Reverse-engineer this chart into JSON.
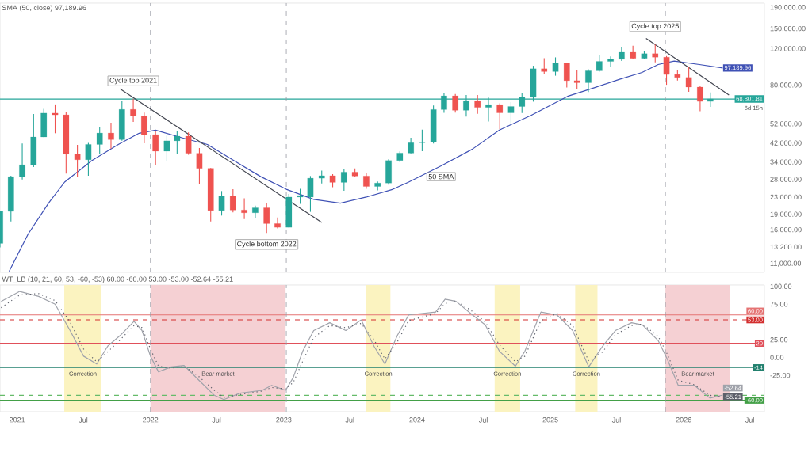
{
  "chart_data": [
    {
      "type": "candlestick",
      "subtitle": "SMA (50, close) 97,189.96",
      "log": true,
      "tick_labels": "y",
      "xlim": [
        "2020-11-15",
        "2026-08-10"
      ],
      "ylim": [
        10000,
        200000
      ],
      "yticks": [
        {
          "value": 11000,
          "label": "11,000.00"
        },
        {
          "value": 13200,
          "label": "13,200.00"
        },
        {
          "value": 16000,
          "label": "16,000.00"
        },
        {
          "value": 19000,
          "label": "19,000.00"
        },
        {
          "value": 23000,
          "label": "23,000.00"
        },
        {
          "value": 28000,
          "label": "28,000.00"
        },
        {
          "value": 34000,
          "label": "34,000.00"
        },
        {
          "value": 42000,
          "label": "42,000.00"
        },
        {
          "value": 52000,
          "label": "52,000.00"
        },
        {
          "value": 80000,
          "label": "80,000.00"
        },
        {
          "value": 120000,
          "label": "120,000.00"
        },
        {
          "value": 150000,
          "label": "150,000.00"
        },
        {
          "value": 190000,
          "label": "190,000.00"
        }
      ],
      "x": [
        "2020-11-15",
        "2020-12-15",
        "2021-01-15",
        "2021-02-15",
        "2021-03-15",
        "2021-04-15",
        "2021-05-15",
        "2021-06-15",
        "2021-07-15",
        "2021-08-15",
        "2021-09-15",
        "2021-10-15",
        "2021-11-15",
        "2021-12-15",
        "2022-01-15",
        "2022-02-15",
        "2022-03-15",
        "2022-04-15",
        "2022-05-15",
        "2022-06-15",
        "2022-07-15",
        "2022-08-15",
        "2022-09-15",
        "2022-10-15",
        "2022-11-15",
        "2022-12-15",
        "2023-01-15",
        "2023-02-15",
        "2023-03-15",
        "2023-04-15",
        "2023-05-15",
        "2023-06-15",
        "2023-07-15",
        "2023-08-15",
        "2023-09-15",
        "2023-10-15",
        "2023-11-15",
        "2023-12-15",
        "2024-01-15",
        "2024-02-15",
        "2024-03-15",
        "2024-04-15",
        "2024-05-15",
        "2024-06-15",
        "2024-07-15",
        "2024-08-15",
        "2024-09-15",
        "2024-10-15",
        "2024-11-15",
        "2024-12-15",
        "2025-01-15",
        "2025-02-15",
        "2025-03-15",
        "2025-04-15",
        "2025-05-15",
        "2025-06-15",
        "2025-07-15",
        "2025-08-15",
        "2025-09-15",
        "2025-10-15",
        "2025-11-15",
        "2025-12-15",
        "2026-01-15",
        "2026-02-15",
        "2026-03-15"
      ],
      "ohlc": [
        [
          13800,
          19800,
          13200,
          19700
        ],
        [
          19700,
          29300,
          17600,
          29000
        ],
        [
          29000,
          41900,
          28100,
          33100
        ],
        [
          33100,
          58300,
          32300,
          45100
        ],
        [
          45100,
          61700,
          45000,
          58800
        ],
        [
          58800,
          64800,
          47000,
          57700
        ],
        [
          57700,
          59500,
          30000,
          37300
        ],
        [
          37300,
          41300,
          28800,
          35000
        ],
        [
          35000,
          42200,
          29300,
          41500
        ],
        [
          41500,
          50500,
          37300,
          47100
        ],
        [
          47100,
          52900,
          39600,
          43800
        ],
        [
          43800,
          67000,
          43300,
          61300
        ],
        [
          61300,
          69000,
          53300,
          57000
        ],
        [
          57000,
          59100,
          42000,
          46300
        ],
        [
          46300,
          48000,
          32900,
          38500
        ],
        [
          38500,
          45800,
          34300,
          43200
        ],
        [
          43200,
          48200,
          37200,
          45500
        ],
        [
          45500,
          47400,
          37000,
          37600
        ],
        [
          37600,
          39900,
          26700,
          31800
        ],
        [
          31800,
          31900,
          17600,
          19900
        ],
        [
          19900,
          24700,
          18800,
          23300
        ],
        [
          23300,
          25200,
          19500,
          20000
        ],
        [
          20000,
          22800,
          18100,
          19400
        ],
        [
          19400,
          21000,
          18200,
          20500
        ],
        [
          20500,
          21500,
          15500,
          17200
        ],
        [
          17200,
          18400,
          16300,
          16500
        ],
        [
          16500,
          23900,
          16500,
          23100
        ],
        [
          23100,
          25300,
          21400,
          23500
        ],
        [
          23100,
          29200,
          19600,
          28500
        ],
        [
          28500,
          31000,
          26900,
          29300
        ],
        [
          29300,
          29800,
          25800,
          27200
        ],
        [
          27200,
          31400,
          24800,
          30500
        ],
        [
          30500,
          31800,
          28900,
          29200
        ],
        [
          29200,
          30200,
          25300,
          26000
        ],
        [
          26000,
          27500,
          24900,
          27000
        ],
        [
          27000,
          35200,
          26500,
          34700
        ],
        [
          34700,
          38400,
          34100,
          37700
        ],
        [
          37700,
          44700,
          37600,
          42300
        ],
        [
          42300,
          48900,
          38500,
          42600
        ],
        [
          42600,
          64000,
          41900,
          61200
        ],
        [
          61200,
          73800,
          59000,
          71300
        ],
        [
          71300,
          72800,
          59200,
          60700
        ],
        [
          60700,
          71900,
          56600,
          67500
        ],
        [
          67500,
          72000,
          58400,
          62700
        ],
        [
          62700,
          70000,
          53500,
          64600
        ],
        [
          64600,
          65600,
          49100,
          59000
        ],
        [
          59000,
          66500,
          52600,
          63300
        ],
        [
          63300,
          73600,
          58900,
          70200
        ],
        [
          70200,
          99600,
          66800,
          96400
        ],
        [
          96400,
          108300,
          90500,
          93400
        ],
        [
          93400,
          109400,
          89200,
          102400
        ],
        [
          102400,
          102500,
          78200,
          84400
        ],
        [
          84400,
          95000,
          76600,
          82500
        ],
        [
          82500,
          95800,
          74400,
          94200
        ],
        [
          94200,
          111900,
          93400,
          104600
        ],
        [
          104600,
          110600,
          98200,
          107100
        ],
        [
          107100,
          123200,
          105100,
          115800
        ],
        [
          115800,
          124500,
          107300,
          108200
        ],
        [
          108200,
          117900,
          107300,
          114000
        ],
        [
          114000,
          126200,
          103500,
          109600
        ],
        [
          109600,
          111000,
          80600,
          90400
        ],
        [
          90400,
          94600,
          84500,
          87500
        ],
        [
          87500,
          97900,
          74500,
          78600
        ],
        [
          78600,
          79300,
          60000,
          67000
        ],
        [
          67000,
          74000,
          63000,
          68801.81
        ]
      ],
      "series": [
        {
          "type": "line",
          "color": "#3f51b5",
          "x": [
            "2020-12-10",
            "2021-01-31",
            "2021-03-28",
            "2021-05-11",
            "2021-07-24",
            "2021-10-05",
            "2021-12-01",
            "2022-01-15",
            "2022-03-28",
            "2022-06-06",
            "2022-08-18",
            "2022-10-30",
            "2023-01-08",
            "2023-03-24",
            "2023-06-05",
            "2023-08-15",
            "2023-10-27",
            "2023-12-09",
            "2024-03-07",
            "2024-06-01",
            "2024-08-14",
            "2024-11-10",
            "2025-02-17",
            "2025-05-01",
            "2025-07-08",
            "2025-09-09",
            "2025-10-23",
            "2025-12-06",
            "2026-02-13",
            "2026-04-18"
          ],
          "values": [
            10100,
            15300,
            21600,
            27300,
            34600,
            41500,
            47000,
            48700,
            44700,
            41500,
            34600,
            29000,
            25200,
            22500,
            21600,
            23100,
            25200,
            27300,
            32700,
            39400,
            48700,
            57500,
            70900,
            78000,
            85500,
            92500,
            101000,
            104900,
            101000,
            97189.96
          ],
          "value_labels": [
            null,
            null,
            null,
            null,
            null,
            null,
            null,
            null,
            null,
            null,
            null,
            null,
            null,
            null,
            null,
            null,
            null,
            null,
            null,
            null,
            null,
            null,
            null,
            null,
            null,
            null,
            null,
            null,
            null,
            "97,189.96"
          ]
        },
        {
          "type": "line",
          "color": "#434651",
          "x": [
            "2021-10-10",
            "2023-04-15"
          ],
          "values": [
            77000,
            17400
          ]
        },
        {
          "type": "line",
          "color": "#434651",
          "x": [
            "2025-09-20",
            "2026-05-05"
          ],
          "values": [
            135000,
            72000
          ]
        }
      ],
      "ref_lines": [
        {
          "axis": "y",
          "value": 68801.81,
          "label": "68,801.81",
          "color": "#26a69a"
        },
        {
          "axis": "x",
          "value": "2022-01-01",
          "color": "#9598a1",
          "line_style": "dashed"
        },
        {
          "axis": "x",
          "value": "2023-01-08",
          "color": "#9598a1",
          "line_style": "dashed"
        },
        {
          "axis": "x",
          "value": "2025-11-12",
          "color": "#9598a1",
          "line_style": "dashed"
        }
      ],
      "annotations": [
        {
          "text": "Cycle top 2021",
          "x": "2021-11-15",
          "y": 69000
        },
        {
          "text": "Cycle bottom 2022",
          "x": "2022-11-15",
          "y": 15500
        },
        {
          "text": "Cycle top 2025",
          "x": "2025-10-15",
          "y": 126200
        },
        {
          "text": "50 SMA",
          "x": "2024-03-07",
          "y": 32700
        },
        "6d 15h"
      ]
    },
    {
      "type": "line",
      "subtitle": "WT_LB (10, 21, 60, 53, -60, -53) 60.00 -60.00 53.00 -53.00 -52.64 -55.21",
      "xlim": [
        "2020-11-15",
        "2026-08-10"
      ],
      "ylim": [
        -76,
        102
      ],
      "yticks": [
        {
          "value": 100,
          "label": "100.00"
        },
        {
          "value": 75,
          "label": "75.00"
        },
        {
          "value": 25,
          "label": "25.00"
        },
        {
          "value": 0,
          "label": "0.00"
        },
        {
          "value": -25,
          "label": "-25.00"
        }
      ],
      "xticks": [
        {
          "value": "2021-01-01",
          "label": "2021"
        },
        {
          "value": "2021-07-01",
          "label": "Jul"
        },
        {
          "value": "2022-01-01",
          "label": "2022"
        },
        {
          "value": "2022-07-01",
          "label": "Jul"
        },
        {
          "value": "2023-01-01",
          "label": "2023"
        },
        {
          "value": "2023-07-01",
          "label": "Jul"
        },
        {
          "value": "2024-01-01",
          "label": "2024"
        },
        {
          "value": "2024-07-01",
          "label": "Jul"
        },
        {
          "value": "2025-01-01",
          "label": "2025"
        },
        {
          "value": "2025-07-01",
          "label": "Jul"
        },
        {
          "value": "2026-01-01",
          "label": "2026"
        },
        {
          "value": "2026-07-01",
          "label": "Jul"
        }
      ],
      "x": [
        "2020-11-18",
        "2021-01-08",
        "2021-03-01",
        "2021-04-15",
        "2021-05-26",
        "2021-07-02",
        "2021-08-07",
        "2021-09-06",
        "2021-10-10",
        "2021-11-17",
        "2021-12-09",
        "2022-01-01",
        "2022-01-23",
        "2022-02-27",
        "2022-04-03",
        "2022-05-12",
        "2022-06-25",
        "2022-07-21",
        "2022-09-03",
        "2022-11-03",
        "2022-11-29",
        "2023-01-06",
        "2023-01-27",
        "2023-02-22",
        "2023-03-24",
        "2023-05-07",
        "2023-06-20",
        "2023-08-01",
        "2023-09-05",
        "2023-10-05",
        "2023-11-08",
        "2023-12-09",
        "2024-02-21",
        "2024-03-18",
        "2024-04-17",
        "2024-06-01",
        "2024-07-06",
        "2024-08-14",
        "2024-09-27",
        "2024-10-23",
        "2024-12-06",
        "2025-01-19",
        "2025-03-03",
        "2025-04-16",
        "2025-05-24",
        "2025-06-28",
        "2025-08-11",
        "2025-09-10",
        "2025-10-23",
        "2025-11-17",
        "2025-12-17",
        "2026-01-30",
        "2026-03-14",
        "2026-04-18"
      ],
      "series": [
        {
          "color": "#a0a3ab",
          "values": [
            79,
            93,
            86,
            75,
            38,
            2,
            -9,
            16,
            31,
            51,
            38,
            2,
            -20,
            -13,
            -11,
            -31,
            -53,
            -59,
            -50,
            -46,
            -39,
            -46,
            -28,
            9,
            38,
            49,
            38,
            53,
            16,
            -9,
            31,
            60,
            64,
            82,
            79,
            60,
            46,
            9,
            -12,
            9,
            64,
            60,
            38,
            -13,
            16,
            38,
            49,
            46,
            24,
            -2,
            -39,
            -39,
            -57,
            -52.64
          ],
          "value_labels": [
            null,
            null,
            null,
            null,
            null,
            null,
            null,
            null,
            null,
            null,
            null,
            null,
            null,
            null,
            null,
            null,
            null,
            null,
            null,
            null,
            null,
            null,
            null,
            null,
            null,
            null,
            null,
            null,
            null,
            null,
            null,
            null,
            null,
            null,
            null,
            null,
            null,
            null,
            null,
            null,
            null,
            null,
            null,
            null,
            null,
            null,
            null,
            null,
            null,
            null,
            null,
            null,
            null,
            "-52.64"
          ]
        },
        {
          "color": "#5d606b",
          "line_style": "dotted",
          "values": [
            70,
            88,
            90,
            80,
            50,
            12,
            -6,
            8,
            25,
            45,
            42,
            12,
            -12,
            -15,
            -12,
            -26,
            -46,
            -56,
            -52,
            -47,
            -42,
            -44,
            -35,
            -5,
            28,
            45,
            42,
            48,
            25,
            -2,
            22,
            52,
            62,
            76,
            80,
            65,
            50,
            18,
            -6,
            2,
            52,
            62,
            45,
            -5,
            8,
            32,
            45,
            47,
            30,
            5,
            -32,
            -38,
            -53,
            -55.21
          ],
          "value_labels": [
            null,
            null,
            null,
            null,
            null,
            null,
            null,
            null,
            null,
            null,
            null,
            null,
            null,
            null,
            null,
            null,
            null,
            null,
            null,
            null,
            null,
            null,
            null,
            null,
            null,
            null,
            null,
            null,
            null,
            null,
            null,
            null,
            null,
            null,
            null,
            null,
            null,
            null,
            null,
            null,
            null,
            null,
            null,
            null,
            null,
            null,
            null,
            null,
            null,
            null,
            null,
            null,
            null,
            "-55.21"
          ]
        }
      ],
      "ref_lines": [
        {
          "axis": "y",
          "value": 60,
          "label": "60.00",
          "color": "#e57373"
        },
        {
          "axis": "y",
          "value": 53,
          "label": "53.00",
          "color": "#d32f2f",
          "line_style": "dashed"
        },
        {
          "axis": "y",
          "value": 20,
          "label": "20",
          "color": "#e0505a"
        },
        {
          "axis": "y",
          "value": -14,
          "label": "-14",
          "color": "#22806e"
        },
        {
          "axis": "y",
          "value": -53,
          "color": "#66bb6a",
          "line_style": "dashed"
        },
        {
          "axis": "y",
          "value": -60,
          "label": "-60.00",
          "color": "#43a047"
        },
        {
          "axis": "x",
          "value": "2022-01-01",
          "color": "#9598a1",
          "line_style": "dashed"
        },
        {
          "axis": "x",
          "value": "2023-01-08",
          "color": "#9598a1",
          "line_style": "dashed"
        },
        {
          "axis": "x",
          "value": "2025-11-12",
          "color": "#9598a1",
          "line_style": "dashed"
        }
      ],
      "bands": [
        {
          "axis": "x",
          "from": "2021-05-10",
          "to": "2021-08-20",
          "label": "Correction",
          "color": "#fbf3c0"
        },
        {
          "axis": "x",
          "from": "2022-01-01",
          "to": "2023-01-06",
          "label": "Bear market",
          "color": "#f5d0d3"
        },
        {
          "axis": "x",
          "from": "2023-08-15",
          "to": "2023-10-20",
          "label": "Correction",
          "color": "#fbf3c0"
        },
        {
          "axis": "x",
          "from": "2024-08-01",
          "to": "2024-10-10",
          "label": "Correction",
          "color": "#fbf3c0"
        },
        {
          "axis": "x",
          "from": "2025-03-10",
          "to": "2025-05-10",
          "label": "Correction",
          "color": "#fbf3c0"
        },
        {
          "axis": "x",
          "from": "2025-11-12",
          "to": "2026-05-08",
          "label": "Bear market",
          "color": "#f5d0d3"
        }
      ]
    }
  ]
}
